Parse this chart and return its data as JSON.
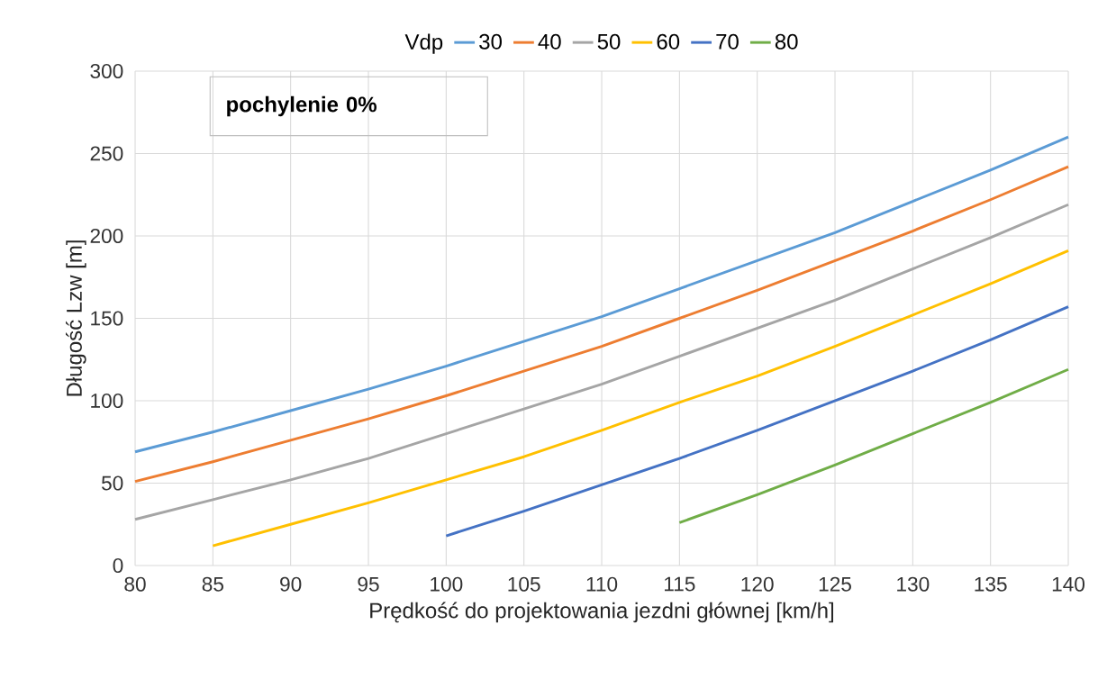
{
  "chart_data": {
    "type": "line",
    "xlabel": "Prędkość do projektowania jezdni głównej [km/h]",
    "ylabel": "Długość Lzw [m]",
    "legend_title": "Vdp",
    "annotations": [
      "pochylenie 0%"
    ],
    "x": [
      80,
      85,
      90,
      95,
      100,
      105,
      110,
      115,
      120,
      125,
      130,
      135,
      140
    ],
    "series": [
      {
        "name": "30",
        "color": "#5b9bd5",
        "values": [
          69,
          81,
          94,
          107,
          121,
          136,
          151,
          168,
          185,
          202,
          221,
          240,
          260
        ]
      },
      {
        "name": "40",
        "color": "#ed7d31",
        "values": [
          51,
          63,
          76,
          89,
          103,
          118,
          133,
          150,
          167,
          185,
          203,
          222,
          242
        ]
      },
      {
        "name": "50",
        "color": "#a5a5a5",
        "values": [
          28,
          40,
          52,
          65,
          80,
          95,
          110,
          127,
          144,
          161,
          180,
          199,
          219
        ]
      },
      {
        "name": "60",
        "color": "#ffc000",
        "values": [
          null,
          12,
          25,
          38,
          52,
          66,
          82,
          99,
          115,
          133,
          152,
          171,
          191
        ]
      },
      {
        "name": "70",
        "color": "#4472c4",
        "values": [
          null,
          null,
          null,
          null,
          18,
          33,
          49,
          65,
          82,
          100,
          118,
          137,
          157
        ]
      },
      {
        "name": "80",
        "color": "#70ad47",
        "values": [
          null,
          null,
          null,
          null,
          null,
          null,
          null,
          26,
          43,
          61,
          80,
          99,
          119
        ]
      }
    ],
    "xlim": [
      80,
      140
    ],
    "xticks": [
      80,
      85,
      90,
      95,
      100,
      105,
      110,
      115,
      120,
      125,
      130,
      135,
      140
    ],
    "ylim": [
      0,
      300
    ],
    "yticks": [
      0,
      50,
      100,
      150,
      200,
      250,
      300
    ],
    "grid": true,
    "legend": "top",
    "marker": "none",
    "line_style": "solid"
  }
}
